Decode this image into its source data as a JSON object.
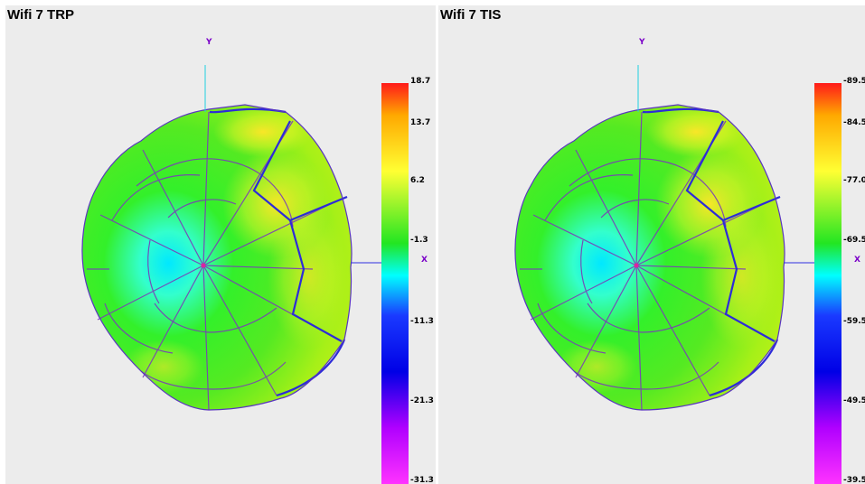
{
  "chart_data": [
    {
      "type": "heatmap",
      "title": "Wifi 7 TRP",
      "axis_labels": {
        "y": "Y",
        "x": "X"
      },
      "colorbar": {
        "ticks": [
          "18.7",
          "13.7",
          "6.2",
          "-1.3",
          "-11.3",
          "-21.3",
          "-31.3"
        ],
        "colors": [
          "#ff1a1a",
          "#ffa800",
          "#ffff33",
          "#22e622",
          "#00ffff",
          "#1a3aff",
          "#0000e6",
          "#b000ff",
          "#ff33ff"
        ]
      }
    },
    {
      "type": "heatmap",
      "title": "Wifi 7 TIS",
      "axis_labels": {
        "y": "Y",
        "x": "X"
      },
      "colorbar": {
        "ticks": [
          "-89.5",
          "-84.5",
          "-77.0",
          "-69.5",
          "-59.5",
          "-49.5",
          "-39.5"
        ],
        "colors": [
          "#ff1a1a",
          "#ffa800",
          "#ffff33",
          "#22e622",
          "#00ffff",
          "#1a3aff",
          "#0000e6",
          "#b000ff",
          "#ff33ff"
        ]
      }
    }
  ]
}
